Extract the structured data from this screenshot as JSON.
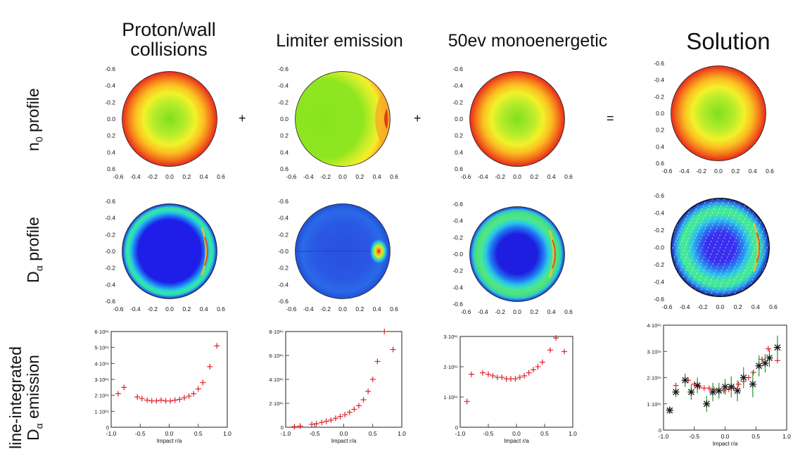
{
  "columns": [
    {
      "title": "Proton/wall collisions"
    },
    {
      "title": "Limiter emission"
    },
    {
      "title": "50ev monoenergetic"
    },
    {
      "title": "Solution"
    }
  ],
  "rows": {
    "r1_main": "n",
    "r1_sub": "0",
    "r1_rest": " profile",
    "r2_main": "D",
    "r2_sub": "α",
    "r2_rest": " profile",
    "r3_line1": "line-integrated",
    "r3_main": "D",
    "r3_sub": "α",
    "r3_rest": " emission"
  },
  "operators": [
    "+",
    "+",
    "="
  ],
  "colors": {
    "cross": "#e0202a",
    "star": "#1a1a1a",
    "errorbar": "#1f9a2f",
    "hatch": "#ffffff"
  },
  "chart_data": [
    {
      "type": "heatmap",
      "panel": "n0-proton",
      "xlim": [
        -0.6,
        0.6
      ],
      "ylim": [
        -0.6,
        0.6
      ],
      "ticks": [
        "-0.6",
        "-0.4",
        "-0.2",
        "0.0",
        "0.2",
        "0.4",
        "0.6"
      ],
      "colormap": "rainbow-radial",
      "shape": "centered"
    },
    {
      "type": "heatmap",
      "panel": "n0-limiter",
      "xlim": [
        -0.6,
        0.6
      ],
      "ylim": [
        -0.6,
        0.6
      ],
      "ticks": [
        "-0.6",
        "-0.4",
        "-0.2",
        "0.0",
        "0.2",
        "0.4",
        "0.6"
      ],
      "colormap": "rainbow-radial",
      "shape": "limiter-right"
    },
    {
      "type": "heatmap",
      "panel": "n0-50ev",
      "xlim": [
        -0.6,
        0.6
      ],
      "ylim": [
        -0.6,
        0.6
      ],
      "ticks": [
        "-0.6",
        "-0.4",
        "-0.2",
        "0.0",
        "0.2",
        "0.4",
        "0.6"
      ],
      "colormap": "rainbow-radial",
      "shape": "centered"
    },
    {
      "type": "heatmap",
      "panel": "n0-solution",
      "xlim": [
        -0.6,
        0.6
      ],
      "ylim": [
        -0.6,
        0.6
      ],
      "ticks": [
        "-0.6",
        "-0.4",
        "-0.2",
        "0.0",
        "0.2",
        "0.4",
        "0.6"
      ],
      "colormap": "rainbow-radial",
      "shape": "centered"
    },
    {
      "type": "heatmap",
      "panel": "da-proton",
      "xlim": [
        -0.6,
        0.6
      ],
      "ylim": [
        -0.6,
        0.6
      ],
      "ticks": [
        "-0.6",
        "-0.4",
        "-0.2",
        "-0.0",
        "-0.2",
        "-0.4",
        "-0.6"
      ],
      "xticks": [
        "-0.6",
        "-0.4",
        "-0.2",
        "0.0",
        "0.2",
        "0.4",
        "0.6"
      ],
      "colormap": "blue-ring",
      "shape": "ring"
    },
    {
      "type": "heatmap",
      "panel": "da-limiter",
      "xlim": [
        -0.6,
        0.6
      ],
      "ylim": [
        -0.6,
        0.6
      ],
      "ticks": [
        "-0.6",
        "-0.4",
        "-0.2",
        "-0.0",
        "-0.2",
        "-0.4",
        "-0.6"
      ],
      "xticks": [
        "-0.6",
        "-0.4",
        "-0.2",
        "0.0",
        "0.2",
        "0.4",
        "0.6"
      ],
      "colormap": "blue-ring",
      "shape": "limiter-spot"
    },
    {
      "type": "heatmap",
      "panel": "da-50ev",
      "xlim": [
        -0.6,
        0.6
      ],
      "ylim": [
        -0.6,
        0.6
      ],
      "ticks": [
        "-0.6",
        "-0.4",
        "-0.2",
        "-0.0",
        "-0.2",
        "-0.4",
        "-0.6"
      ],
      "xticks": [
        "-0.6",
        "-0.4",
        "-0.2",
        "0.0",
        "0.2",
        "0.4",
        "0.6"
      ],
      "colormap": "blue-ring",
      "shape": "ring-wide"
    },
    {
      "type": "heatmap",
      "panel": "da-solution",
      "xlim": [
        -0.6,
        0.6
      ],
      "ylim": [
        -0.6,
        0.6
      ],
      "ticks": [
        "-0.6",
        "-0.4",
        "-0.2",
        "-0.0",
        "-0.2",
        "-0.4",
        "-0.6"
      ],
      "xticks": [
        "-0.6",
        "-0.4",
        "-0.2",
        "0.0",
        "0.2",
        "0.4",
        "0.6"
      ],
      "colormap": "blue-ring",
      "shape": "ring-hatched"
    },
    {
      "type": "scatter",
      "panel": "emit-proton",
      "xlabel": "Impact r/a",
      "xlim": [
        -1.0,
        1.0
      ],
      "ylim": [
        0,
        6
      ],
      "xticks": [
        "-1.0",
        "-0.5",
        "0.0",
        "0.5",
        "1.0"
      ],
      "yticks": [
        {
          "v": 0,
          "label": "0"
        },
        {
          "v": 1,
          "label": "1·10¹⁶"
        },
        {
          "v": 2,
          "label": "2·10¹⁶"
        },
        {
          "v": 3,
          "label": "3·10¹⁶"
        },
        {
          "v": 4,
          "label": "4·10¹⁶"
        },
        {
          "v": 5,
          "label": "5·10¹⁶"
        },
        {
          "v": 6,
          "label": "6·10¹⁶"
        }
      ],
      "series": [
        {
          "marker": "cross",
          "x": [
            -0.88,
            -0.78,
            -0.55,
            -0.47,
            -0.38,
            -0.3,
            -0.22,
            -0.14,
            -0.06,
            0.02,
            0.1,
            0.18,
            0.26,
            0.34,
            0.42,
            0.5,
            0.58,
            0.7,
            0.82
          ],
          "y": [
            2.1,
            2.5,
            1.9,
            1.8,
            1.7,
            1.65,
            1.65,
            1.7,
            1.65,
            1.65,
            1.7,
            1.75,
            1.85,
            1.95,
            2.1,
            2.4,
            2.8,
            3.8,
            5.1
          ]
        }
      ]
    },
    {
      "type": "scatter",
      "panel": "emit-limiter",
      "xlabel": "Impact r/a",
      "xlim": [
        -1.0,
        1.0
      ],
      "ylim": [
        0,
        8
      ],
      "xticks": [
        "-1.0",
        "-0.5",
        "0.0",
        "0.5",
        "1.0"
      ],
      "yticks": [
        {
          "v": 0,
          "label": "0"
        },
        {
          "v": 2,
          "label": "2·10¹⁶"
        },
        {
          "v": 4,
          "label": "4·10¹⁶"
        },
        {
          "v": 6,
          "label": "6·10¹⁶"
        },
        {
          "v": 8,
          "label": "8·10¹⁶"
        }
      ],
      "series": [
        {
          "marker": "cross",
          "x": [
            -0.85,
            -0.75,
            -0.55,
            -0.47,
            -0.38,
            -0.3,
            -0.22,
            -0.14,
            -0.06,
            0.02,
            0.1,
            0.18,
            0.26,
            0.34,
            0.42,
            0.5,
            0.58,
            0.7,
            0.85
          ],
          "y": [
            0.05,
            0.1,
            0.25,
            0.3,
            0.4,
            0.5,
            0.6,
            0.75,
            0.9,
            1.05,
            1.25,
            1.5,
            1.8,
            2.3,
            3.0,
            4.0,
            5.5,
            8.0,
            6.5
          ]
        }
      ]
    },
    {
      "type": "scatter",
      "panel": "emit-50ev",
      "xlabel": "Impact r/a",
      "xlim": [
        -1.0,
        1.0
      ],
      "ylim": [
        0,
        3
      ],
      "xticks": [
        "-1.0",
        "-0.5",
        "0.0",
        "0.5",
        "1.0"
      ],
      "yticks": [
        {
          "v": 0,
          "label": "0"
        },
        {
          "v": 1,
          "label": "1·10¹⁶"
        },
        {
          "v": 2,
          "label": "2·10¹⁶"
        },
        {
          "v": 3,
          "label": "3·10¹⁶"
        }
      ],
      "series": [
        {
          "marker": "cross",
          "x": [
            -0.88,
            -0.8,
            -0.6,
            -0.5,
            -0.42,
            -0.34,
            -0.26,
            -0.18,
            -0.1,
            -0.02,
            0.06,
            0.14,
            0.22,
            0.3,
            0.38,
            0.46,
            0.6,
            0.7,
            0.85
          ],
          "y": [
            0.85,
            1.75,
            1.8,
            1.75,
            1.7,
            1.65,
            1.65,
            1.6,
            1.6,
            1.6,
            1.65,
            1.7,
            1.8,
            1.9,
            2.0,
            2.15,
            2.55,
            2.95,
            2.5
          ]
        }
      ]
    },
    {
      "type": "scatter",
      "panel": "emit-solution",
      "xlabel": "Impact r/a",
      "xlim": [
        -1.0,
        1.0
      ],
      "ylim": [
        0,
        4
      ],
      "xticks": [
        "-1.0",
        "-0.5",
        "0.0",
        "0.5",
        "1.0"
      ],
      "yticks": [
        {
          "v": 0,
          "label": "0"
        },
        {
          "v": 1,
          "label": "1·10¹⁶"
        },
        {
          "v": 2,
          "label": "2·10¹⁶"
        },
        {
          "v": 3,
          "label": "3·10¹⁶"
        },
        {
          "v": 4,
          "label": "4·10¹⁶"
        }
      ],
      "series": [
        {
          "marker": "cross",
          "x": [
            -0.9,
            -0.8,
            -0.6,
            -0.5,
            -0.42,
            -0.34,
            -0.26,
            -0.18,
            -0.1,
            -0.02,
            0.06,
            0.14,
            0.22,
            0.3,
            0.38,
            0.46,
            0.6,
            0.7,
            0.85
          ],
          "y": [
            0.8,
            1.7,
            1.9,
            1.75,
            1.65,
            1.6,
            1.6,
            1.55,
            1.5,
            1.5,
            1.55,
            1.6,
            1.75,
            1.85,
            2.0,
            2.2,
            2.7,
            3.1,
            2.65
          ]
        },
        {
          "marker": "star",
          "x": [
            -0.9,
            -0.8,
            -0.65,
            -0.55,
            -0.45,
            -0.3,
            -0.2,
            -0.1,
            0.0,
            0.1,
            0.2,
            0.3,
            0.45,
            0.55,
            0.65,
            0.72,
            0.85
          ],
          "y": [
            0.75,
            1.45,
            1.9,
            1.45,
            1.7,
            1.0,
            1.45,
            1.5,
            1.65,
            1.65,
            1.5,
            2.0,
            1.75,
            2.45,
            2.55,
            2.75,
            3.15
          ],
          "err": [
            0.1,
            0.2,
            0.25,
            0.3,
            0.3,
            0.3,
            0.35,
            0.3,
            0.3,
            0.4,
            0.4,
            0.4,
            0.5,
            0.4,
            0.35,
            0.35,
            0.45
          ]
        }
      ]
    }
  ]
}
